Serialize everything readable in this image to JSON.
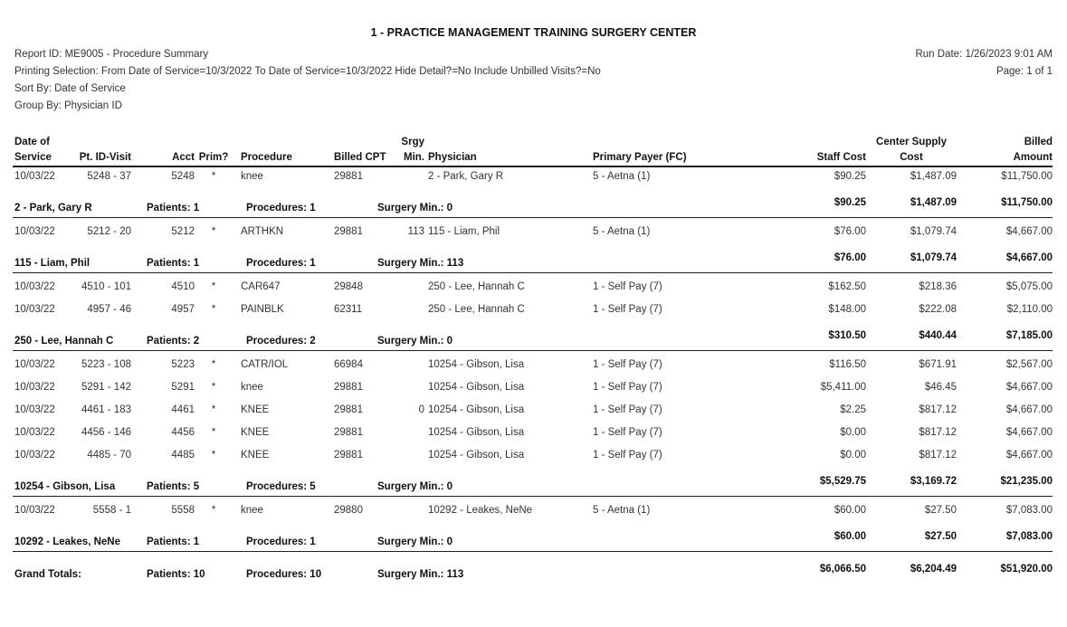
{
  "title": "1 - PRACTICE MANAGEMENT TRAINING SURGERY CENTER",
  "meta": {
    "report_id": "Report ID: ME9005 - Procedure Summary",
    "printing_selection": "Printing Selection: From Date of Service=10/3/2022 To Date of Service=10/3/2022 Hide Detail?=No Include Unbilled Visits?=No",
    "sort_by": "Sort By: Date of Service",
    "group_by": "Group By: Physician ID",
    "run_date": "Run Date: 1/26/2023 9:01 AM",
    "page": "Page: 1 of 1"
  },
  "colors": {
    "background": "#ffffff",
    "text_primary": "#303030",
    "text_bold": "#111111",
    "rule_line": "#1b1b1b"
  },
  "table": {
    "columns": {
      "date": "Date of\nService",
      "pt_id_visit": "Pt. ID-Visit",
      "acct": "Acct",
      "prim": "Prim?",
      "procedure": "Procedure",
      "billed_cpt": "Billed CPT",
      "srgy_min": "Srgy\nMin.",
      "physician": "Physician",
      "payer": "Primary Payer (FC)",
      "staff_cost": "Staff Cost",
      "supply_cost": "Center Supply\nCost",
      "billed_amount": "Billed\nAmount"
    },
    "groups": [
      {
        "rows": [
          {
            "date": "10/03/22",
            "pt_id_visit": "5248 - 37",
            "acct": "5248",
            "prim": "*",
            "procedure": "knee",
            "billed_cpt": "29881",
            "srgy_min": "",
            "physician": "2 - Park, Gary R",
            "payer": "5 - Aetna (1)",
            "staff_cost": "$90.25",
            "supply_cost": "$1,487.09",
            "billed_amount": "$11,750.00"
          }
        ],
        "summary": {
          "label": "2 - Park, Gary R",
          "patients": "Patients: 1",
          "procedures": "Procedures: 1",
          "surgery_min": "Surgery Min.: 0",
          "staff_cost": "$90.25",
          "supply_cost": "$1,487.09",
          "billed_amount": "$11,750.00"
        }
      },
      {
        "rows": [
          {
            "date": "10/03/22",
            "pt_id_visit": "5212 - 20",
            "acct": "5212",
            "prim": "*",
            "procedure": "ARTHKN",
            "billed_cpt": "29881",
            "srgy_min": "113",
            "physician": "115 - Liam, Phil",
            "payer": "5 - Aetna (1)",
            "staff_cost": "$76.00",
            "supply_cost": "$1,079.74",
            "billed_amount": "$4,667.00"
          }
        ],
        "summary": {
          "label": "115 - Liam, Phil",
          "patients": "Patients: 1",
          "procedures": "Procedures: 1",
          "surgery_min": "Surgery Min.: 113",
          "staff_cost": "$76.00",
          "supply_cost": "$1,079.74",
          "billed_amount": "$4,667.00"
        }
      },
      {
        "rows": [
          {
            "date": "10/03/22",
            "pt_id_visit": "4510 - 101",
            "acct": "4510",
            "prim": "*",
            "procedure": "CAR647",
            "billed_cpt": "29848",
            "srgy_min": "",
            "physician": "250 - Lee, Hannah C",
            "payer": "1 - Self Pay (7)",
            "staff_cost": "$162.50",
            "supply_cost": "$218.36",
            "billed_amount": "$5,075.00"
          },
          {
            "date": "10/03/22",
            "pt_id_visit": "4957 - 46",
            "acct": "4957",
            "prim": "*",
            "procedure": "PAINBLK",
            "billed_cpt": "62311",
            "srgy_min": "",
            "physician": "250 - Lee, Hannah C",
            "payer": "1 - Self Pay (7)",
            "staff_cost": "$148.00",
            "supply_cost": "$222.08",
            "billed_amount": "$2,110.00"
          }
        ],
        "summary": {
          "label": "250 - Lee, Hannah C",
          "patients": "Patients: 2",
          "procedures": "Procedures: 2",
          "surgery_min": "Surgery Min.: 0",
          "staff_cost": "$310.50",
          "supply_cost": "$440.44",
          "billed_amount": "$7,185.00"
        }
      },
      {
        "rows": [
          {
            "date": "10/03/22",
            "pt_id_visit": "5223 - 108",
            "acct": "5223",
            "prim": "*",
            "procedure": "CATR/IOL",
            "billed_cpt": "66984",
            "srgy_min": "",
            "physician": "10254 - Gibson, Lisa",
            "payer": "1 - Self Pay (7)",
            "staff_cost": "$116.50",
            "supply_cost": "$671.91",
            "billed_amount": "$2,567.00"
          },
          {
            "date": "10/03/22",
            "pt_id_visit": "5291 - 142",
            "acct": "5291",
            "prim": "*",
            "procedure": "knee",
            "billed_cpt": "29881",
            "srgy_min": "",
            "physician": "10254 - Gibson, Lisa",
            "payer": "1 - Self Pay (7)",
            "staff_cost": "$5,411.00",
            "supply_cost": "$46.45",
            "billed_amount": "$4,667.00"
          },
          {
            "date": "10/03/22",
            "pt_id_visit": "4461 - 183",
            "acct": "4461",
            "prim": "*",
            "procedure": "KNEE",
            "billed_cpt": "29881",
            "srgy_min": "0",
            "physician": "10254 - Gibson, Lisa",
            "payer": "1 - Self Pay (7)",
            "staff_cost": "$2.25",
            "supply_cost": "$817.12",
            "billed_amount": "$4,667.00"
          },
          {
            "date": "10/03/22",
            "pt_id_visit": "4456 - 146",
            "acct": "4456",
            "prim": "*",
            "procedure": "KNEE",
            "billed_cpt": "29881",
            "srgy_min": "",
            "physician": "10254 - Gibson, Lisa",
            "payer": "1 - Self Pay (7)",
            "staff_cost": "$0.00",
            "supply_cost": "$817.12",
            "billed_amount": "$4,667.00"
          },
          {
            "date": "10/03/22",
            "pt_id_visit": "4485 - 70",
            "acct": "4485",
            "prim": "*",
            "procedure": "KNEE",
            "billed_cpt": "29881",
            "srgy_min": "",
            "physician": "10254 - Gibson, Lisa",
            "payer": "1 - Self Pay (7)",
            "staff_cost": "$0.00",
            "supply_cost": "$817.12",
            "billed_amount": "$4,667.00"
          }
        ],
        "summary": {
          "label": "10254 - Gibson, Lisa",
          "patients": "Patients: 5",
          "procedures": "Procedures: 5",
          "surgery_min": "Surgery Min.: 0",
          "staff_cost": "$5,529.75",
          "supply_cost": "$3,169.72",
          "billed_amount": "$21,235.00"
        }
      },
      {
        "rows": [
          {
            "date": "10/03/22",
            "pt_id_visit": "5558 - 1",
            "acct": "5558",
            "prim": "*",
            "procedure": "knee",
            "billed_cpt": "29880",
            "srgy_min": "",
            "physician": "10292 - Leakes, NeNe",
            "payer": "5 - Aetna (1)",
            "staff_cost": "$60.00",
            "supply_cost": "$27.50",
            "billed_amount": "$7,083.00"
          }
        ],
        "summary": {
          "label": "10292 - Leakes, NeNe",
          "patients": "Patients: 1",
          "procedures": "Procedures: 1",
          "surgery_min": "Surgery Min.: 0",
          "staff_cost": "$60.00",
          "supply_cost": "$27.50",
          "billed_amount": "$7,083.00"
        }
      }
    ],
    "grand_total": {
      "label": "Grand Totals:",
      "patients": "Patients: 10",
      "procedures": "Procedures: 10",
      "surgery_min": "Surgery Min.: 113",
      "staff_cost": "$6,066.50",
      "supply_cost": "$6,204.49",
      "billed_amount": "$51,920.00"
    }
  }
}
